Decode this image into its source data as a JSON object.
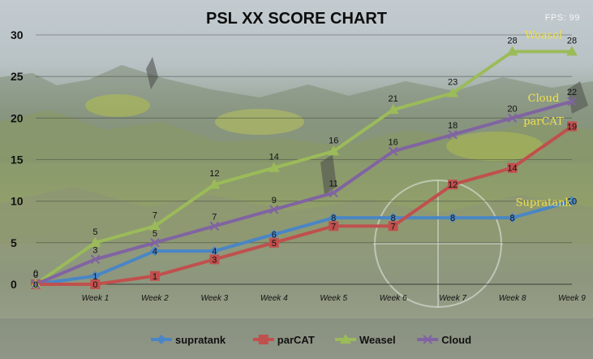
{
  "overlay": {
    "fps": "FPS: 99"
  },
  "colors": {
    "supratank": "#4a86c5",
    "parCAT": "#c0504d",
    "Weasel": "#9bbb59",
    "Cloud": "#8064a2",
    "callout": "#f0e24a"
  },
  "chart_data": {
    "type": "line",
    "title": "PSL XX SCORE CHART",
    "xlabel": "",
    "ylabel": "",
    "categories": [
      "",
      "Week  1",
      "Week 2",
      "Week 3",
      "Week 4",
      "Week 5",
      "Week 6",
      "Week 7",
      "Week 8",
      "Week 9"
    ],
    "ylim": [
      0,
      30
    ],
    "yticks": [
      0,
      5,
      10,
      15,
      20,
      25,
      30
    ],
    "grid": true,
    "legend_position": "bottom",
    "series": [
      {
        "name": "supratank",
        "values": [
          0,
          1,
          4,
          4,
          6,
          8,
          8,
          8,
          8,
          10
        ],
        "marker": "diamond",
        "callout": "Supratank"
      },
      {
        "name": "parCAT",
        "values": [
          0,
          0,
          1,
          3,
          5,
          7,
          7,
          12,
          14,
          19
        ],
        "marker": "square",
        "callout": "parCAT"
      },
      {
        "name": "Weasel",
        "values": [
          0,
          5,
          7,
          12,
          14,
          16,
          21,
          23,
          28,
          28
        ],
        "marker": "triangle",
        "callout": "Weasel"
      },
      {
        "name": "Cloud",
        "values": [
          0,
          3,
          5,
          7,
          9,
          11,
          16,
          18,
          20,
          22
        ],
        "marker": "x",
        "callout": "Cloud"
      }
    ]
  }
}
